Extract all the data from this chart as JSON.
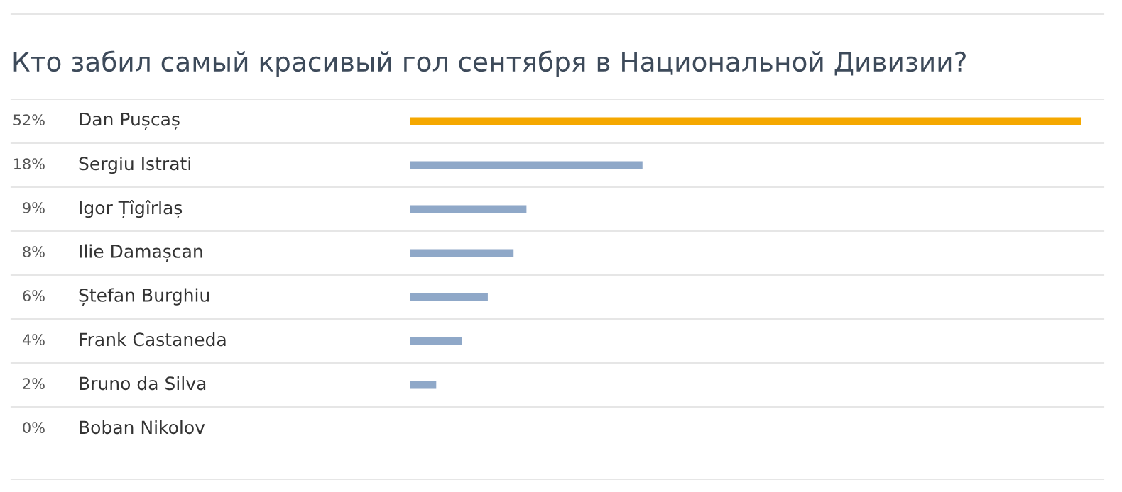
{
  "chart_data": {
    "type": "bar",
    "orientation": "horizontal",
    "title": "Кто забил самый красивый гол сентября в Национальной Дивизии?",
    "categories": [
      "Dan Pușcaș",
      "Sergiu Istrati",
      "Igor Țîgîrlaș",
      "Ilie Damașcan",
      "Ștefan Burghiu",
      "Frank Castaneda",
      "Bruno da Silva",
      "Boban Nikolov"
    ],
    "values": [
      52,
      18,
      9,
      8,
      6,
      4,
      2,
      0
    ],
    "value_labels": [
      "52%",
      "18%",
      "9%",
      "8%",
      "6%",
      "4%",
      "2%",
      "0%"
    ],
    "colors": [
      "#f5a800",
      "#8fa8c8",
      "#8fa8c8",
      "#8fa8c8",
      "#8fa8c8",
      "#8fa8c8",
      "#8fa8c8",
      "#8fa8c8"
    ],
    "grid": "y"
  }
}
